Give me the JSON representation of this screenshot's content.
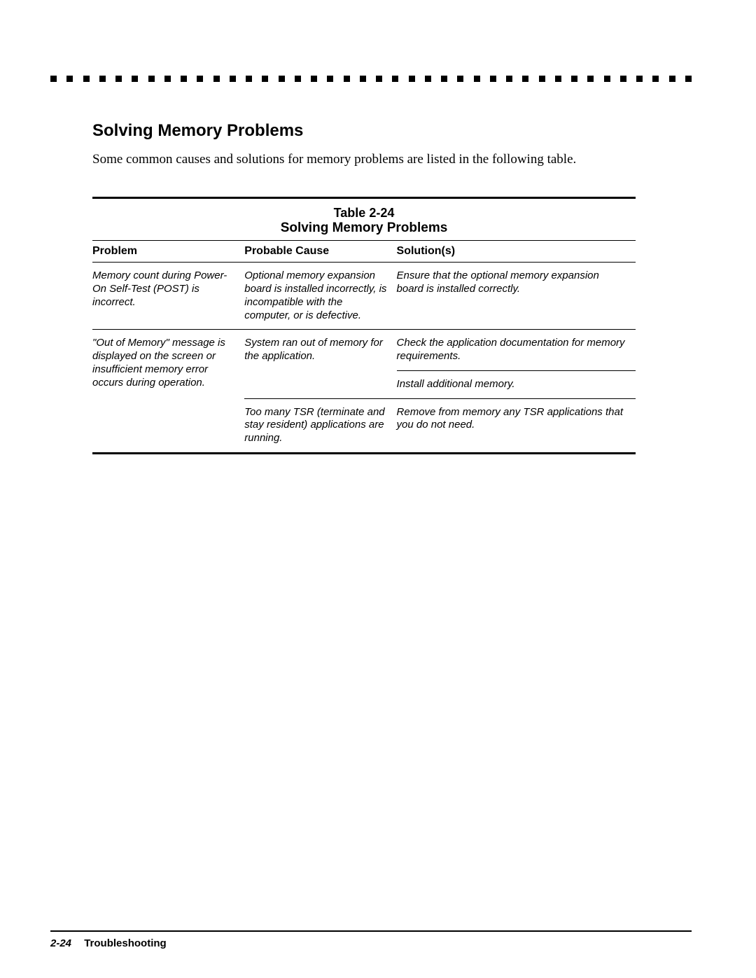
{
  "colors": {
    "background": "#ffffff",
    "text": "#000000",
    "border": "#000000"
  },
  "typography": {
    "heading_size": 24,
    "body_size": 19,
    "table_header_size": 16,
    "table_cell_size": 15,
    "footer_size": 15
  },
  "section": {
    "heading": "Solving Memory Problems",
    "body": "Some common causes and solutions for memory problems are listed in the following table."
  },
  "table": {
    "number": "Table 2-24",
    "caption": "Solving Memory Problems",
    "columns": {
      "problem": "Problem",
      "cause": "Probable Cause",
      "solution": "Solution(s)"
    },
    "rows": {
      "r1": {
        "problem": "Memory count during Power-On Self-Test (POST) is incorrect.",
        "cause": "Optional memory expansion board is installed incorrectly, is incompatible with the computer, or is defective.",
        "solution": "Ensure that the optional memory expansion board is installed correctly."
      },
      "r2": {
        "problem": "\"Out of Memory\" message is displayed on the screen or insufficient memory error occurs during operation.",
        "cause": "System ran out of memory for the application.",
        "solution_a": "Check the application documentation for memory requirements.",
        "solution_b": "Install additional memory."
      },
      "r3": {
        "cause": "Too many TSR (terminate and stay resident) applications are running.",
        "solution": "Remove from memory any TSR applications that you do not need."
      }
    }
  },
  "footer": {
    "page": "2-24",
    "section": "Troubleshooting"
  },
  "dot_count": 40
}
